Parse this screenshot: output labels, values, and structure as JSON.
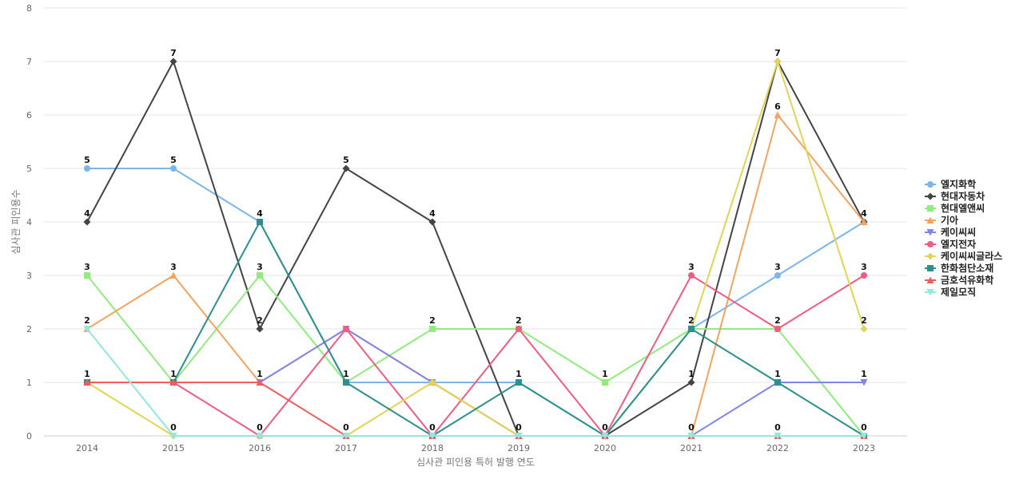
{
  "chart_data": {
    "type": "line",
    "x": [
      2014,
      2015,
      2016,
      2017,
      2018,
      2019,
      2020,
      2021,
      2022,
      2023
    ],
    "xlabel": "심사관 피인용 특허 발행 연도",
    "ylabel": "심사관 피인용수",
    "ylim": [
      0,
      8
    ],
    "yticks": [
      0,
      1,
      2,
      3,
      4,
      5,
      6,
      7,
      8
    ],
    "grid": true,
    "legend": "right",
    "series": [
      {
        "name": "엘지화학",
        "color": "#7cb5ec",
        "marker": "circle",
        "values": [
          5,
          5,
          4,
          1,
          1,
          1,
          0,
          2,
          3,
          4
        ],
        "labels": [
          5,
          5,
          4,
          null,
          null,
          null,
          null,
          null,
          3,
          null
        ]
      },
      {
        "name": "현대자동차",
        "color": "#434348",
        "marker": "diamond",
        "values": [
          4,
          7,
          2,
          5,
          4,
          0,
          0,
          1,
          7,
          4
        ],
        "labels": [
          4,
          7,
          2,
          5,
          4,
          null,
          0,
          1,
          7,
          4
        ]
      },
      {
        "name": "현대엘앤씨",
        "color": "#90ed7d",
        "marker": "square",
        "values": [
          3,
          1,
          3,
          1,
          2,
          2,
          1,
          2,
          2,
          0
        ],
        "labels": [
          3,
          null,
          3,
          null,
          2,
          2,
          1,
          null,
          null,
          null
        ]
      },
      {
        "name": "기아",
        "color": "#f7a35c",
        "marker": "triangle",
        "values": [
          2,
          3,
          1,
          2,
          1,
          0,
          0,
          0,
          6,
          4
        ],
        "labels": [
          2,
          3,
          1,
          null,
          null,
          null,
          null,
          null,
          6,
          null
        ]
      },
      {
        "name": "케이씨씨",
        "color": "#8085e9",
        "marker": "triangle-down",
        "values": [
          1,
          1,
          1,
          2,
          1,
          0,
          0,
          0,
          1,
          1
        ],
        "labels": [
          null,
          null,
          null,
          null,
          null,
          null,
          null,
          null,
          null,
          1
        ]
      },
      {
        "name": "엘지전자",
        "color": "#f15c80",
        "marker": "circle",
        "values": [
          1,
          1,
          0,
          2,
          0,
          2,
          0,
          3,
          2,
          3
        ],
        "labels": [
          null,
          null,
          null,
          null,
          null,
          null,
          null,
          3,
          2,
          3
        ]
      },
      {
        "name": "케이씨씨글라스",
        "color": "#e4d354",
        "marker": "diamond",
        "values": [
          1,
          0,
          0,
          0,
          1,
          0,
          0,
          2,
          7,
          2
        ],
        "labels": [
          null,
          null,
          null,
          null,
          null,
          null,
          null,
          null,
          null,
          2
        ]
      },
      {
        "name": "한화첨단소재",
        "color": "#2b908f",
        "marker": "square",
        "values": [
          1,
          1,
          4,
          1,
          0,
          1,
          0,
          2,
          1,
          0
        ],
        "labels": [
          null,
          null,
          null,
          1,
          null,
          1,
          null,
          2,
          1,
          null
        ]
      },
      {
        "name": "금호석유화학",
        "color": "#f45b5b",
        "marker": "triangle",
        "values": [
          1,
          1,
          1,
          0,
          0,
          0,
          0,
          0,
          0,
          0
        ],
        "labels": [
          1,
          1,
          null,
          null,
          null,
          null,
          null,
          null,
          null,
          null
        ]
      },
      {
        "name": "제일모직",
        "color": "#91e8e1",
        "marker": "triangle-down",
        "values": [
          2,
          0,
          0,
          0,
          0,
          0,
          0,
          0,
          0,
          0
        ],
        "labels": [
          null,
          0,
          0,
          0,
          0,
          0,
          null,
          0,
          0,
          0
        ]
      }
    ]
  }
}
